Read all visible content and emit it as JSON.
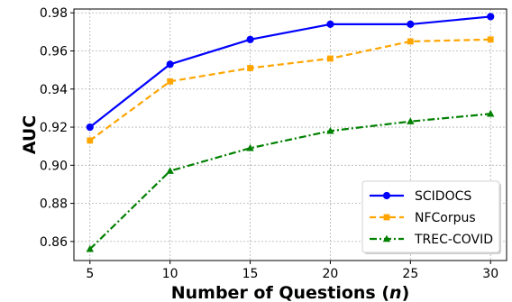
{
  "chart_data": {
    "type": "line",
    "xlabel_main": "Number of Questions (",
    "xlabel_var": "n",
    "xlabel_close": ")",
    "ylabel": "AUC",
    "x": [
      5,
      10,
      15,
      20,
      25,
      30
    ],
    "xlim": [
      4,
      31
    ],
    "ylim": [
      0.85,
      0.982
    ],
    "xticks": [
      "5",
      "10",
      "15",
      "20",
      "25",
      "30"
    ],
    "yticks": [
      "0.86",
      "0.88",
      "0.90",
      "0.92",
      "0.94",
      "0.96",
      "0.98"
    ],
    "grid": true,
    "legend_position": "lower-right",
    "series": [
      {
        "name": "SCIDOCS",
        "values": [
          0.92,
          0.953,
          0.966,
          0.974,
          0.974,
          0.978
        ],
        "color": "#0000ff",
        "linestyle": "solid",
        "marker": "circle"
      },
      {
        "name": "NFCorpus",
        "values": [
          0.913,
          0.944,
          0.951,
          0.956,
          0.965,
          0.966
        ],
        "color": "#ffa500",
        "linestyle": "dashed",
        "marker": "square"
      },
      {
        "name": "TREC-COVID",
        "values": [
          0.856,
          0.897,
          0.909,
          0.918,
          0.923,
          0.927
        ],
        "color": "#008000",
        "linestyle": "dashdot",
        "marker": "triangle"
      }
    ]
  }
}
